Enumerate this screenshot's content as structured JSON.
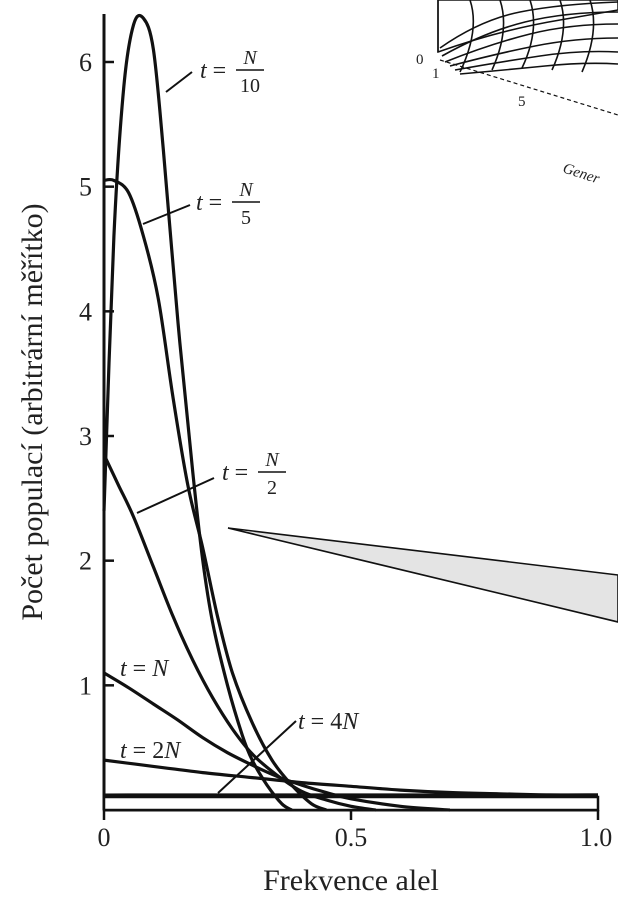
{
  "chart_data": {
    "type": "line",
    "xlabel": "Frekvence alel",
    "ylabel": "Počet populací (arbitrární měřítko)",
    "xlim": [
      0,
      1.0
    ],
    "ylim": [
      0,
      6.4
    ],
    "x_ticks": [
      "0",
      "0.5",
      "1.0"
    ],
    "y_ticks": [
      "1",
      "2",
      "3",
      "4",
      "5",
      "6"
    ],
    "baseline_value": 0.1,
    "series": [
      {
        "name": "t = N/10",
        "label_t": "t",
        "label_eq": " = ",
        "label_num": "N",
        "label_den": "10",
        "x": [
          0.0,
          0.02,
          0.04,
          0.06,
          0.08,
          0.1,
          0.12,
          0.15,
          0.18,
          0.2,
          0.22,
          0.25,
          0.28,
          0.3,
          0.33,
          0.36,
          0.38
        ],
        "y": [
          2.4,
          4.6,
          5.8,
          6.3,
          6.35,
          6.1,
          5.3,
          3.9,
          2.7,
          2.0,
          1.5,
          1.0,
          0.6,
          0.4,
          0.2,
          0.05,
          0.0
        ]
      },
      {
        "name": "t = N/5",
        "label_t": "t",
        "label_eq": " = ",
        "label_num": "N",
        "label_den": "5",
        "x": [
          0.0,
          0.02,
          0.05,
          0.08,
          0.11,
          0.14,
          0.17,
          0.2,
          0.23,
          0.26,
          0.3,
          0.34,
          0.38,
          0.42,
          0.45
        ],
        "y": [
          5.05,
          5.05,
          4.95,
          4.6,
          4.1,
          3.3,
          2.6,
          2.1,
          1.55,
          1.1,
          0.7,
          0.4,
          0.2,
          0.05,
          0.0
        ]
      },
      {
        "name": "t = N/2",
        "label_t": "t",
        "label_eq": " = ",
        "label_num": "N",
        "label_den": "2",
        "x": [
          0.0,
          0.03,
          0.06,
          0.1,
          0.14,
          0.18,
          0.22,
          0.26,
          0.3,
          0.35,
          0.4,
          0.45,
          0.5,
          0.55
        ],
        "y": [
          2.85,
          2.6,
          2.35,
          1.95,
          1.55,
          1.2,
          0.9,
          0.65,
          0.45,
          0.28,
          0.15,
          0.08,
          0.03,
          0.0
        ]
      },
      {
        "name": "t = N",
        "label_t": "t",
        "label_eq": " = ",
        "label_tail": "N",
        "x": [
          0.0,
          0.05,
          0.1,
          0.15,
          0.2,
          0.25,
          0.3,
          0.35,
          0.4,
          0.45,
          0.5,
          0.6,
          0.7
        ],
        "y": [
          1.1,
          0.98,
          0.85,
          0.72,
          0.58,
          0.46,
          0.36,
          0.27,
          0.2,
          0.14,
          0.09,
          0.03,
          0.0
        ]
      },
      {
        "name": "t = 2N",
        "label_t": "t",
        "label_eq": " = ",
        "label_tail": "2N",
        "x": [
          0.0,
          0.1,
          0.2,
          0.3,
          0.4,
          0.5,
          0.6,
          0.7,
          0.8,
          0.9,
          1.0
        ],
        "y": [
          0.4,
          0.35,
          0.3,
          0.26,
          0.22,
          0.19,
          0.16,
          0.14,
          0.13,
          0.12,
          0.12
        ]
      },
      {
        "name": "t = 4N",
        "label_t": "t",
        "label_eq": " = ",
        "label_tail": "4N",
        "x": [
          0.0,
          0.2,
          0.4,
          0.6,
          0.8,
          1.0
        ],
        "y": [
          0.12,
          0.12,
          0.12,
          0.12,
          0.12,
          0.12
        ]
      }
    ]
  },
  "inset": {
    "zero_label": "0",
    "one_label": "1",
    "five_label": "5",
    "axis_label_fragment": "Gener"
  }
}
